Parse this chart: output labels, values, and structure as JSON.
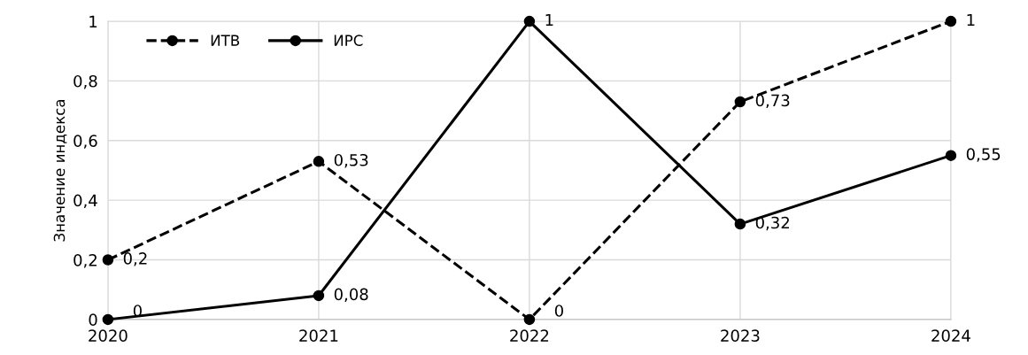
{
  "chart_data": {
    "type": "line",
    "ylabel": "Значение индекса",
    "categories": [
      "2020",
      "2021",
      "2022",
      "2023",
      "2024"
    ],
    "series": [
      {
        "name": "ИТВ",
        "color": "#000000",
        "line_style": "dashed",
        "values": [
          0.2,
          0.53,
          0,
          0.73,
          1
        ],
        "value_labels": [
          "0,2",
          "0,53",
          "0",
          "0,73",
          "1"
        ]
      },
      {
        "name": "ИРС",
        "color": "#000000",
        "line_style": "solid",
        "values": [
          0,
          0.08,
          1,
          0.32,
          0.55
        ],
        "value_labels": [
          "0",
          "0,08",
          "1",
          "0,32",
          "0,55"
        ]
      }
    ],
    "ylim": [
      0,
      1
    ],
    "yticks": [
      0,
      {
        "value": 0.2,
        "label": "0,2"
      },
      {
        "value": 0.4,
        "label": "0,4"
      },
      {
        "value": 0.6,
        "label": "0,6"
      },
      {
        "value": 0.8,
        "label": "0,8"
      },
      1
    ],
    "grid": true,
    "legend": "top left",
    "marker": "circle"
  }
}
